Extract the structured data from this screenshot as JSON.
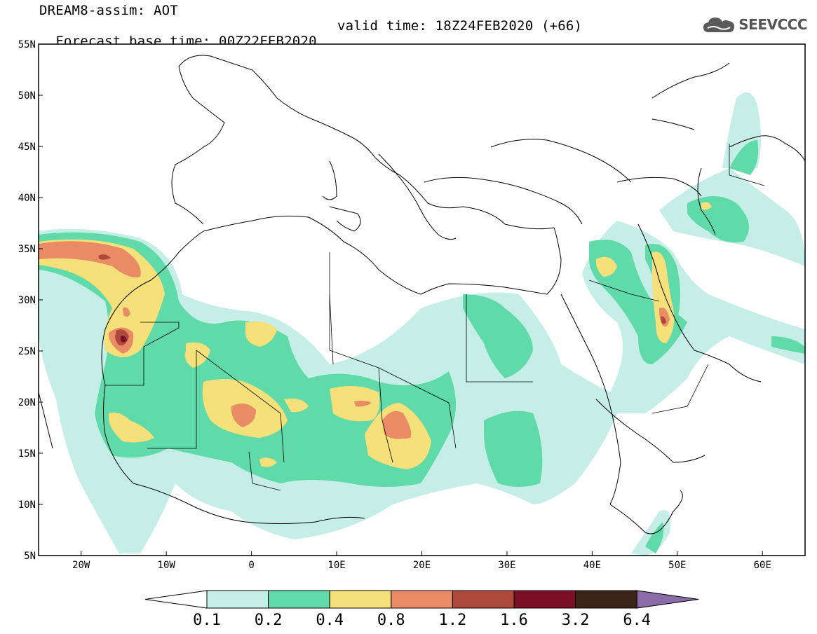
{
  "header": {
    "title": "DREAM8-assim: AOT",
    "base_time": "Forecast base time: 00Z22FEB2020",
    "valid_time": "valid time: 18Z24FEB2020 (+66)"
  },
  "logo": {
    "text": "SEEVCCC",
    "icon": "cloud-icon"
  },
  "map": {
    "lat_range": [
      5,
      55
    ],
    "lon_range": [
      -25,
      65
    ],
    "lat_labels": [
      "55N",
      "50N",
      "45N",
      "40N",
      "35N",
      "30N",
      "25N",
      "20N",
      "15N",
      "10N",
      "5N"
    ],
    "lon_labels": [
      "20W",
      "10W",
      "0",
      "10E",
      "20E",
      "30E",
      "40E",
      "50E",
      "60E"
    ]
  },
  "colorbar": {
    "labels": [
      "0.1",
      "0.2",
      "0.4",
      "0.8",
      "1.2",
      "1.6",
      "3.2",
      "6.4"
    ],
    "colors": [
      "#ffffff",
      "#c4eee6",
      "#5fdaa8",
      "#f5e07a",
      "#e98c66",
      "#ad4a3c",
      "#7a0f26",
      "#3b2418",
      "#8c6ca8"
    ]
  }
}
